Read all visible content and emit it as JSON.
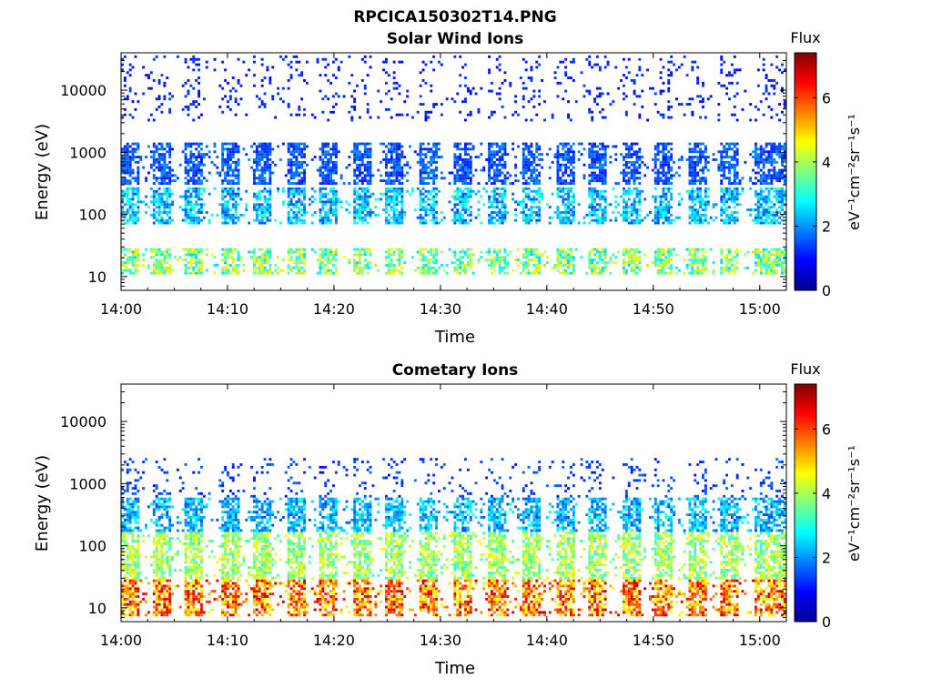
{
  "figure_title": "RPCICA150302T14.PNG",
  "colors": {
    "background": "#ffffff",
    "axis": "#000000",
    "colormap": "jet"
  },
  "chart_data": [
    {
      "type": "heatmap",
      "title": "Solar Wind Ions",
      "xlabel": "Time",
      "ylabel": "Energy (eV)",
      "x_tick_labels": [
        "14:00",
        "14:10",
        "14:20",
        "14:30",
        "14:40",
        "14:50",
        "15:00"
      ],
      "x_tick_minutes": [
        0,
        10,
        20,
        30,
        40,
        50,
        60
      ],
      "xlim_minutes": [
        0,
        62.5
      ],
      "y_scale": "log",
      "ylim": [
        6,
        40000
      ],
      "y_tick_labels": [
        "10",
        "100",
        "1000",
        "10000"
      ],
      "y_tick_values": [
        10,
        100,
        1000,
        10000
      ],
      "colorbar": {
        "title": "Flux",
        "label": "eV⁻¹cm⁻²sr⁻¹s⁻¹",
        "range": [
          0,
          7.4
        ],
        "tick_labels": [
          "0",
          "2",
          "4",
          "6"
        ],
        "tick_values": [
          0,
          2,
          4,
          6
        ]
      },
      "pulse_centers_min": [
        0.6,
        3.8,
        6.7,
        10.2,
        13.1,
        16.4,
        19.4,
        22.6,
        25.6,
        28.8,
        32.0,
        35.2,
        38.4,
        41.6,
        44.6,
        47.8,
        50.8,
        54.0,
        57.0,
        60.2,
        62.0
      ],
      "bands": [
        {
          "e_low": 11,
          "e_high": 30,
          "level_min": 2.4,
          "level_max": 5.0
        },
        {
          "e_low": 70,
          "e_high": 260,
          "level_min": 1.4,
          "level_max": 3.2
        },
        {
          "e_low": 300,
          "e_high": 1400,
          "level_min": 1.0,
          "level_max": 2.0
        },
        {
          "e_low": 3000,
          "e_high": 38000,
          "level_min": 0.9,
          "level_max": 1.4
        }
      ]
    },
    {
      "type": "heatmap",
      "title": "Cometary Ions",
      "xlabel": "Time",
      "ylabel": "Energy (eV)",
      "x_tick_labels": [
        "14:00",
        "14:10",
        "14:20",
        "14:30",
        "14:40",
        "14:50",
        "15:00"
      ],
      "x_tick_minutes": [
        0,
        10,
        20,
        30,
        40,
        50,
        60
      ],
      "xlim_minutes": [
        0,
        62.5
      ],
      "y_scale": "log",
      "ylim": [
        6,
        40000
      ],
      "y_tick_labels": [
        "10",
        "100",
        "1000",
        "10000"
      ],
      "y_tick_values": [
        10,
        100,
        1000,
        10000
      ],
      "colorbar": {
        "title": "Flux",
        "label": "eV⁻¹cm⁻²sr⁻¹s⁻¹",
        "range": [
          0,
          7.4
        ],
        "tick_labels": [
          "0",
          "2",
          "4",
          "6"
        ],
        "tick_values": [
          0,
          2,
          4,
          6
        ]
      },
      "pulse_centers_min": [
        0.6,
        3.8,
        6.7,
        10.2,
        13.1,
        16.4,
        19.4,
        22.6,
        25.6,
        28.8,
        32.0,
        35.2,
        38.4,
        41.6,
        44.6,
        47.8,
        50.8,
        54.0,
        57.0,
        60.2,
        62.0
      ],
      "bands": [
        {
          "e_low": 7,
          "e_high": 30,
          "level_min": 4.2,
          "level_max": 7.0
        },
        {
          "e_low": 30,
          "e_high": 160,
          "level_min": 3.0,
          "level_max": 4.8
        },
        {
          "e_low": 160,
          "e_high": 600,
          "level_min": 1.4,
          "level_max": 3.0
        },
        {
          "e_low": 600,
          "e_high": 2500,
          "level_min": 1.0,
          "level_max": 1.8
        }
      ]
    }
  ]
}
